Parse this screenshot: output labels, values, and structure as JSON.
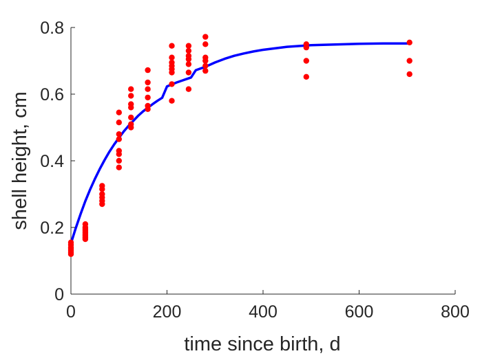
{
  "chart_data": {
    "type": "scatter",
    "title": "",
    "xlabel": "time since birth, d",
    "ylabel": "shell height, cm",
    "xlim": [
      0,
      800
    ],
    "ylim": [
      0,
      0.8
    ],
    "xticks": [
      0,
      200,
      400,
      600,
      800
    ],
    "yticks": [
      0,
      0.2,
      0.4,
      0.6,
      0.8
    ],
    "xtick_labels": [
      "0",
      "200",
      "400",
      "600",
      "800"
    ],
    "ytick_labels": [
      "0",
      "0.2",
      "0.4",
      "0.6",
      "0.8"
    ],
    "grid": false,
    "colors": {
      "points": "#ff0000",
      "curve": "#0000ff",
      "axes": "#262626"
    },
    "series": [
      {
        "kind": "points",
        "points": [
          [
            0,
            0.155
          ],
          [
            0,
            0.148
          ],
          [
            0,
            0.14
          ],
          [
            0,
            0.135
          ],
          [
            0,
            0.13
          ],
          [
            0,
            0.125
          ],
          [
            0,
            0.12
          ],
          [
            30,
            0.21
          ],
          [
            30,
            0.2
          ],
          [
            30,
            0.195
          ],
          [
            30,
            0.19
          ],
          [
            30,
            0.185
          ],
          [
            30,
            0.18
          ],
          [
            30,
            0.175
          ],
          [
            30,
            0.17
          ],
          [
            30,
            0.165
          ],
          [
            65,
            0.325
          ],
          [
            65,
            0.315
          ],
          [
            65,
            0.3
          ],
          [
            65,
            0.29
          ],
          [
            65,
            0.28
          ],
          [
            65,
            0.27
          ],
          [
            100,
            0.545
          ],
          [
            100,
            0.515
          ],
          [
            100,
            0.48
          ],
          [
            100,
            0.465
          ],
          [
            100,
            0.43
          ],
          [
            100,
            0.42
          ],
          [
            100,
            0.4
          ],
          [
            100,
            0.38
          ],
          [
            125,
            0.615
          ],
          [
            125,
            0.595
          ],
          [
            125,
            0.57
          ],
          [
            125,
            0.56
          ],
          [
            125,
            0.53
          ],
          [
            125,
            0.51
          ],
          [
            125,
            0.5
          ],
          [
            160,
            0.672
          ],
          [
            160,
            0.635
          ],
          [
            160,
            0.615
          ],
          [
            160,
            0.59
          ],
          [
            160,
            0.565
          ],
          [
            160,
            0.555
          ],
          [
            210,
            0.745
          ],
          [
            210,
            0.71
          ],
          [
            210,
            0.695
          ],
          [
            210,
            0.685
          ],
          [
            210,
            0.675
          ],
          [
            210,
            0.665
          ],
          [
            210,
            0.63
          ],
          [
            210,
            0.58
          ],
          [
            245,
            0.745
          ],
          [
            245,
            0.73
          ],
          [
            245,
            0.715
          ],
          [
            245,
            0.705
          ],
          [
            245,
            0.69
          ],
          [
            245,
            0.665
          ],
          [
            245,
            0.615
          ],
          [
            280,
            0.772
          ],
          [
            280,
            0.75
          ],
          [
            280,
            0.71
          ],
          [
            280,
            0.7
          ],
          [
            280,
            0.685
          ],
          [
            280,
            0.67
          ],
          [
            490,
            0.75
          ],
          [
            490,
            0.74
          ],
          [
            490,
            0.7
          ],
          [
            490,
            0.652
          ],
          [
            705,
            0.755
          ],
          [
            705,
            0.7
          ],
          [
            705,
            0.66
          ]
        ]
      },
      {
        "kind": "curve",
        "points": [
          [
            0,
            0.152
          ],
          [
            10,
            0.198
          ],
          [
            20,
            0.24
          ],
          [
            30,
            0.279
          ],
          [
            40,
            0.314
          ],
          [
            50,
            0.346
          ],
          [
            60,
            0.375
          ],
          [
            70,
            0.402
          ],
          [
            80,
            0.427
          ],
          [
            90,
            0.449
          ],
          [
            100,
            0.469
          ],
          [
            110,
            0.488
          ],
          [
            120,
            0.505
          ],
          [
            130,
            0.52
          ],
          [
            140,
            0.535
          ],
          [
            150,
            0.548
          ],
          [
            160,
            0.559
          ],
          [
            170,
            0.57
          ],
          [
            180,
            0.58
          ],
          [
            190,
            0.589
          ],
          [
            200,
            0.623
          ],
          [
            210,
            0.629
          ],
          [
            220,
            0.635
          ],
          [
            230,
            0.64
          ],
          [
            240,
            0.645
          ],
          [
            250,
            0.65
          ],
          [
            260,
            0.672
          ],
          [
            280,
            0.682
          ],
          [
            300,
            0.695
          ],
          [
            320,
            0.706
          ],
          [
            340,
            0.715
          ],
          [
            360,
            0.722
          ],
          [
            380,
            0.728
          ],
          [
            400,
            0.733
          ],
          [
            450,
            0.742
          ],
          [
            500,
            0.747
          ],
          [
            550,
            0.749
          ],
          [
            600,
            0.751
          ],
          [
            650,
            0.752
          ],
          [
            705,
            0.752
          ]
        ]
      }
    ]
  }
}
